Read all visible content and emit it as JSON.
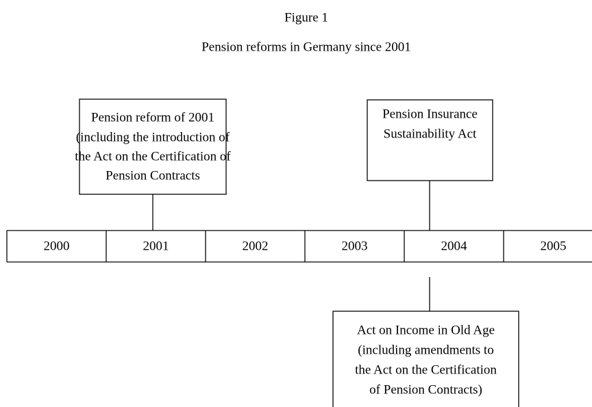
{
  "header": {
    "title": "Figure 1",
    "subtitle": "Pension reforms in Germany since 2001"
  },
  "timeline": {
    "years": [
      "2000",
      "2001",
      "2002",
      "2003",
      "2004",
      "2005"
    ]
  },
  "events": [
    {
      "lines": [
        "Pension reform of 2001",
        "(including the introduction of",
        "the Act on the Certification of",
        "Pension Contracts"
      ]
    },
    {
      "lines": [
        "Pension Insurance",
        "Sustainability Act"
      ]
    },
    {
      "lines": [
        "Act on Income in Old Age",
        "(including amendments to",
        "the Act on the Certification",
        "of Pension Contracts)"
      ]
    }
  ]
}
